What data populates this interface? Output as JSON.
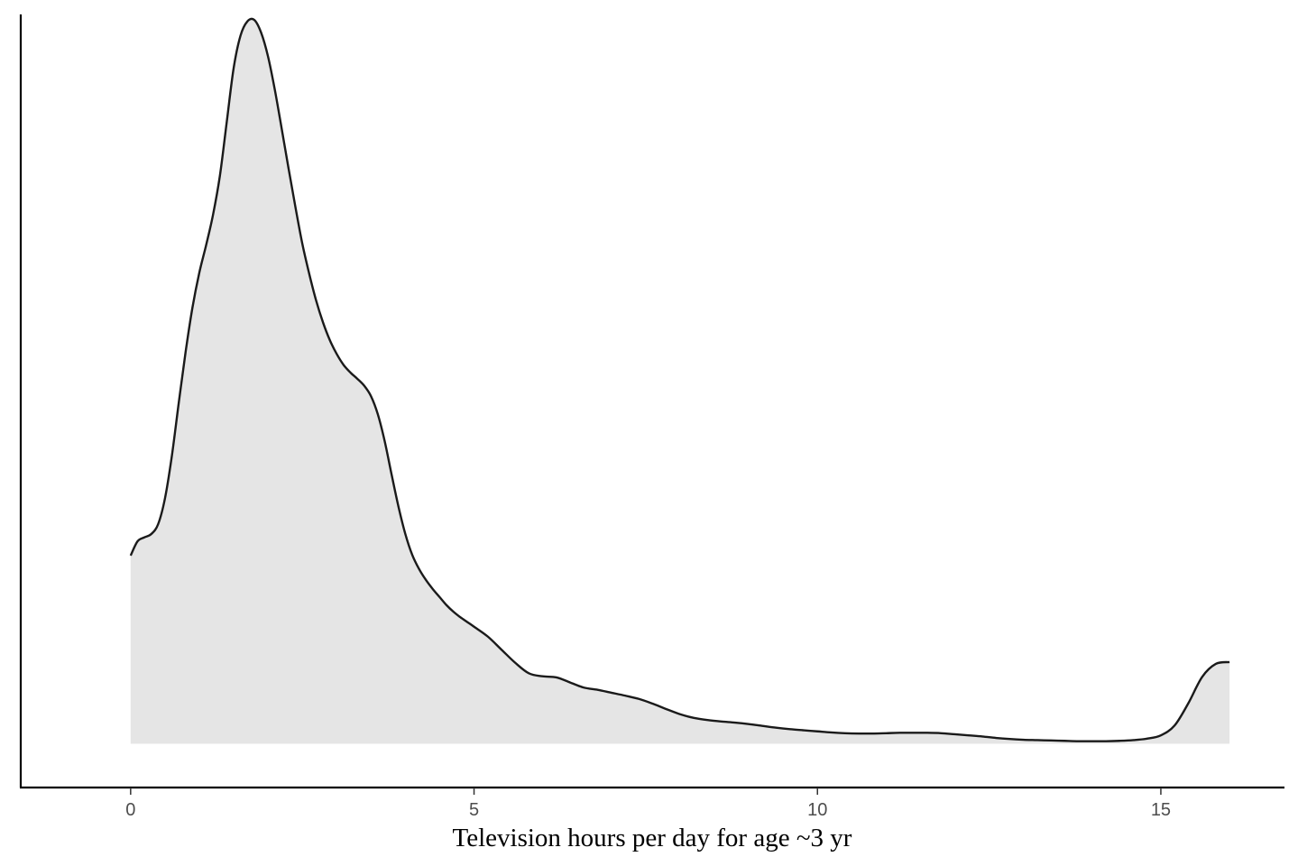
{
  "chart_data": {
    "type": "area",
    "title": "",
    "xlabel": "Television hours per day for age ~3 yr",
    "ylabel": "",
    "xlim": [
      -1.6,
      16.8
    ],
    "ylim": [
      -0.012,
      0.2
    ],
    "x_ticks": [
      {
        "value": 0,
        "label": "0"
      },
      {
        "value": 5,
        "label": "5"
      },
      {
        "value": 10,
        "label": "10"
      },
      {
        "value": 15,
        "label": "15"
      }
    ],
    "grid": false,
    "legend": "none",
    "fill_color": "#e5e5e5",
    "line_color": "#1a1a1a",
    "series": [
      {
        "x": [
          0,
          0.1,
          0.2,
          0.3,
          0.4,
          0.5,
          0.6,
          0.7,
          0.8,
          0.9,
          1.0,
          1.1,
          1.2,
          1.3,
          1.4,
          1.5,
          1.6,
          1.7,
          1.8,
          1.9,
          2.0,
          2.1,
          2.2,
          2.3,
          2.4,
          2.5,
          2.6,
          2.7,
          2.8,
          2.9,
          3.0,
          3.1,
          3.2,
          3.3,
          3.4,
          3.5,
          3.6,
          3.7,
          3.8,
          3.9,
          4.0,
          4.1,
          4.2,
          4.3,
          4.4,
          4.5,
          4.6,
          4.7,
          4.8,
          4.9,
          5.0,
          5.2,
          5.4,
          5.6,
          5.8,
          6.0,
          6.2,
          6.4,
          6.6,
          6.8,
          7.0,
          7.2,
          7.4,
          7.6,
          7.8,
          8.0,
          8.2,
          8.4,
          8.6,
          8.8,
          9.0,
          9.2,
          9.4,
          9.6,
          9.8,
          10.0,
          10.2,
          10.4,
          10.6,
          10.8,
          11.0,
          11.2,
          11.4,
          11.6,
          11.8,
          12.0,
          12.2,
          12.4,
          12.6,
          12.8,
          13.0,
          13.2,
          13.4,
          13.6,
          13.8,
          14.0,
          14.2,
          14.4,
          14.6,
          14.8,
          15.0,
          15.2,
          15.4,
          15.6,
          15.8,
          16.0
        ],
        "y": [
          0.0516,
          0.0555,
          0.0566,
          0.0575,
          0.0602,
          0.0673,
          0.0789,
          0.0934,
          0.1074,
          0.1196,
          0.1292,
          0.1368,
          0.1451,
          0.1558,
          0.1706,
          0.1853,
          0.1942,
          0.1981,
          0.1985,
          0.195,
          0.1885,
          0.1793,
          0.1686,
          0.1577,
          0.1471,
          0.1371,
          0.1289,
          0.1216,
          0.1156,
          0.1107,
          0.1069,
          0.1039,
          0.1018,
          0.1001,
          0.0982,
          0.0953,
          0.0903,
          0.0829,
          0.0738,
          0.065,
          0.0575,
          0.0518,
          0.0479,
          0.0449,
          0.0424,
          0.0402,
          0.038,
          0.0362,
          0.0347,
          0.0334,
          0.0321,
          0.0294,
          0.0258,
          0.0222,
          0.0193,
          0.0185,
          0.0182,
          0.0168,
          0.0154,
          0.0148,
          0.014,
          0.0132,
          0.0123,
          0.011,
          0.0095,
          0.0081,
          0.0071,
          0.0065,
          0.0061,
          0.0058,
          0.0054,
          0.0049,
          0.0044,
          0.004,
          0.0037,
          0.0034,
          0.0031,
          0.0029,
          0.0028,
          0.0028,
          0.0029,
          0.003,
          0.003,
          0.003,
          0.0029,
          0.0026,
          0.0023,
          0.002,
          0.0016,
          0.0013,
          0.0011,
          0.001,
          0.0009,
          0.0008,
          0.0007,
          0.0007,
          0.0007,
          0.0008,
          0.001,
          0.0014,
          0.0023,
          0.005,
          0.0111,
          0.0183,
          0.0219,
          0.0224
        ]
      }
    ]
  }
}
